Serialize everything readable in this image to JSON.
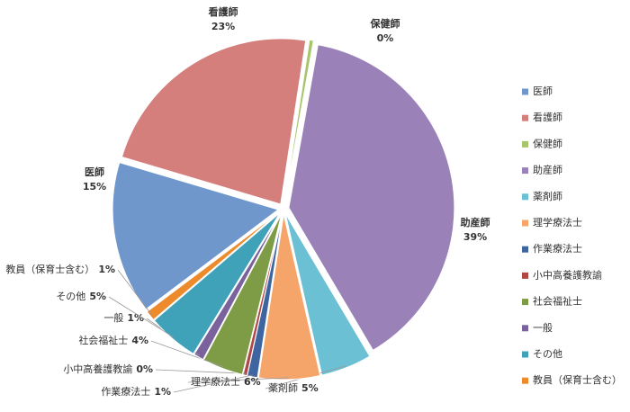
{
  "chart_data": {
    "type": "pie",
    "categories": [
      "医師",
      "看護師",
      "保健師",
      "助産師",
      "薬剤師",
      "理学療法士",
      "作業療法士",
      "小中高養護教諭",
      "社会福祉士",
      "一般",
      "その他",
      "教員（保育士含む）"
    ],
    "values": [
      15,
      23,
      0.4,
      39,
      5,
      6,
      1,
      0.4,
      4,
      1,
      5,
      1
    ],
    "value_labels": [
      "15%",
      "23%",
      "0%",
      "39%",
      "5%",
      "6%",
      "1%",
      "0%",
      "4%",
      "1%",
      "5%",
      "1%"
    ],
    "colors": [
      "#6f97cc",
      "#d57f7d",
      "#a7c66b",
      "#9a82b8",
      "#6cc0d4",
      "#f5a56a",
      "#3f65a0",
      "#b04744",
      "#7e9c45",
      "#7a629c",
      "#3fa2b9",
      "#ec8a2c"
    ],
    "legend": "right"
  }
}
